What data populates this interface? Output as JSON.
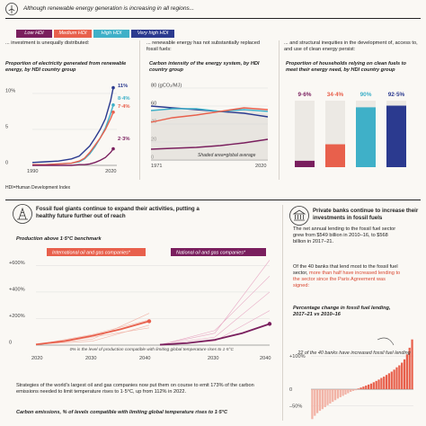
{
  "header": {
    "title": "Although renewable energy generation is increasing in all regions...",
    "footnote": "HDI=Human Development Index"
  },
  "legend": {
    "items": [
      {
        "label": "Low HDI",
        "color": "#7a1f5e"
      },
      {
        "label": "Medium HDI",
        "color": "#e8604c"
      },
      {
        "label": "High HDI",
        "color": "#3fb0c8"
      },
      {
        "label": "Very high HDI",
        "color": "#2b3a8f"
      }
    ]
  },
  "panels": [
    {
      "lead": "... investment is unequally distributed:",
      "title": "Proportion of electricity generated from renewable energy, by HDI country group"
    },
    {
      "lead": "... renewable energy has not substantially replaced fossil fuels:",
      "title": "Carbon intensity of the energy system, by HDI country group",
      "shade_note": "Shaded area=global average"
    },
    {
      "lead": "... and structural inequities in the development of, access to, and use of clean energy persist:",
      "title": "Proportion of households relying on clean fuels to meet their energy need, by HDI country group"
    }
  ],
  "section2": {
    "title": "Fossil fuel giants continue to expand their activities, putting a healthy future further out of reach",
    "subtitle": "Production above 1·5°C benchmark",
    "label_intl": "International oil and gas companies*",
    "label_natl": "National oil and gas companies*",
    "zero_note": "0% is the level of production compatible with limiting global temperature rises to 1·5°C",
    "body": "Strategies of the world's largest oil and gas companies now put them on course to emit 173% of the carbon emissions needed to limit temperature rises to 1·5°C, up from 112% in 2022.",
    "footer": "Carbon emissions, % of levels compatible with limiting global temperature rises to 1·5°C"
  },
  "section3": {
    "title": "Private banks continue to increase their investments in fossil fuels",
    "p1": "The net annual lending to the fossil fuel sector grew from $549 billion in 2010–16, to $568 billion in 2017–21.",
    "p2_plain": "Of the 40 banks that lend most to the fossil fuel sector, ",
    "p2_highlight": "more than half have increased lending to the sector since the Paris Agreement was signed:",
    "chart_title": "Percentage change in fossil fuel lending, 2017–21 vs 2010–16",
    "annotation": "22 of the 40 banks have increased fossil fuel lending",
    "yticks": [
      "+100%",
      "0",
      "–50%"
    ]
  },
  "chart_data": [
    {
      "type": "line",
      "title": "Proportion of electricity generated from renewable energy, by HDI country group",
      "x_ticks": [
        "1990",
        "2020"
      ],
      "y_ticks": [
        "0",
        "5",
        "10%"
      ],
      "ylim": [
        0,
        11
      ],
      "xlim": [
        1990,
        2021
      ],
      "series": [
        {
          "name": "Very high HDI",
          "color": "#2b3a8f",
          "end_label": "11%",
          "x": [
            1990,
            1995,
            2000,
            2005,
            2008,
            2010,
            2012,
            2014,
            2016,
            2018,
            2020,
            2021
          ],
          "y": [
            0.4,
            0.5,
            0.6,
            0.9,
            1.3,
            2.0,
            2.7,
            3.8,
            5.0,
            6.5,
            9.0,
            10.8
          ]
        },
        {
          "name": "High HDI",
          "color": "#3fb0c8",
          "end_label": "8·4%",
          "x": [
            1990,
            1995,
            2000,
            2005,
            2008,
            2010,
            2012,
            2014,
            2016,
            2018,
            2020,
            2021
          ],
          "y": [
            0.1,
            0.1,
            0.2,
            0.3,
            0.5,
            0.9,
            1.6,
            2.6,
            3.8,
            5.2,
            7.2,
            8.4
          ]
        },
        {
          "name": "Medium HDI",
          "color": "#e8604c",
          "end_label": "7·4%",
          "x": [
            1990,
            1995,
            2000,
            2005,
            2008,
            2010,
            2012,
            2014,
            2016,
            2018,
            2020,
            2021
          ],
          "y": [
            0.1,
            0.1,
            0.2,
            0.3,
            0.6,
            1.0,
            1.8,
            2.8,
            3.8,
            5.0,
            6.5,
            7.4
          ]
        },
        {
          "name": "Low HDI",
          "color": "#7a1f5e",
          "end_label": "2·3%",
          "x": [
            1990,
            1995,
            2000,
            2005,
            2008,
            2010,
            2012,
            2014,
            2016,
            2018,
            2020,
            2021
          ],
          "y": [
            0.0,
            0.0,
            0.0,
            0.0,
            0.1,
            0.1,
            0.2,
            0.4,
            0.7,
            1.1,
            1.8,
            2.3
          ]
        }
      ]
    },
    {
      "type": "line",
      "title": "Carbon intensity of the energy system, by HDI country group",
      "ylabel": "gCO₂/MJ",
      "x_ticks": [
        "1971",
        "2020"
      ],
      "y_ticks": [
        "0",
        "20",
        "40",
        "60",
        "80 (gCO₂/MJ)"
      ],
      "ylim": [
        0,
        80
      ],
      "xlim": [
        1971,
        2020
      ],
      "series": [
        {
          "name": "Very high HDI",
          "color": "#2b3a8f",
          "x": [
            1971,
            1980,
            1990,
            2000,
            2010,
            2020
          ],
          "y": [
            60,
            58,
            56,
            54,
            52,
            48
          ]
        },
        {
          "name": "High HDI",
          "color": "#3fb0c8",
          "x": [
            1971,
            1980,
            1990,
            2000,
            2010,
            2020
          ],
          "y": [
            55,
            57,
            57,
            54,
            56,
            54
          ]
        },
        {
          "name": "Medium HDI",
          "color": "#e8604c",
          "x": [
            1971,
            1980,
            1990,
            2000,
            2010,
            2020
          ],
          "y": [
            42,
            47,
            50,
            54,
            58,
            56
          ]
        },
        {
          "name": "Low HDI",
          "color": "#7a1f5e",
          "x": [
            1971,
            1980,
            1990,
            2000,
            2010,
            2020
          ],
          "y": [
            12,
            13,
            14,
            16,
            19,
            23
          ]
        }
      ],
      "shaded": {
        "name": "global average",
        "x": [
          1971,
          1980,
          1990,
          2000,
          2010,
          2020
        ],
        "y": [
          56,
          56,
          55,
          53,
          55,
          52
        ]
      }
    },
    {
      "type": "bar",
      "title": "Proportion of households relying on clean fuels to meet their energy need, by HDI country group",
      "categories": [
        "Low HDI",
        "Medium HDI",
        "High HDI",
        "Very high HDI"
      ],
      "values": [
        9.6,
        34.4,
        90,
        92.5
      ],
      "labels": [
        "9·6%",
        "34·4%",
        "90%",
        "92·5%"
      ],
      "colors": [
        "#7a1f5e",
        "#e8604c",
        "#3fb0c8",
        "#2b3a8f"
      ],
      "ylim": [
        0,
        100
      ]
    },
    {
      "type": "line",
      "title": "International oil and gas companies*",
      "y_ticks": [
        "0",
        "+200%",
        "+400%",
        "+600%"
      ],
      "x_ticks": [
        "2020",
        "2030",
        "2040"
      ],
      "ylim": [
        0,
        650
      ],
      "xlim": [
        2020,
        2040
      ],
      "series": [
        {
          "name": "International oil and gas companies*",
          "color": "#e8604c",
          "x": [
            2020,
            2025,
            2030,
            2035,
            2040
          ],
          "y": [
            5,
            30,
            70,
            120,
            180
          ]
        }
      ]
    },
    {
      "type": "line",
      "title": "National oil and gas companies*",
      "x_ticks": [
        "2030",
        "2040"
      ],
      "ylim": [
        0,
        650
      ],
      "xlim": [
        2020,
        2040
      ],
      "series": [
        {
          "name": "National oil and gas companies*",
          "color": "#7a1f5e",
          "x": [
            2020,
            2025,
            2030,
            2035,
            2040
          ],
          "y": [
            3,
            15,
            40,
            90,
            160
          ]
        }
      ]
    },
    {
      "type": "bar",
      "title": "Percentage change in fossil fuel lending, 2017–21 vs 2010–16",
      "y_ticks": [
        "+100%",
        "0",
        "–50%"
      ],
      "ylim": [
        -100,
        160
      ],
      "values": [
        -90,
        -80,
        -72,
        -65,
        -60,
        -54,
        -48,
        -43,
        -38,
        -33,
        -28,
        -24,
        -20,
        -16,
        -12,
        -8,
        -5,
        -3,
        2,
        5,
        8,
        11,
        14,
        17,
        21,
        25,
        29,
        34,
        38,
        43,
        48,
        53,
        59,
        66,
        72,
        80,
        90,
        105,
        125,
        150
      ]
    }
  ]
}
